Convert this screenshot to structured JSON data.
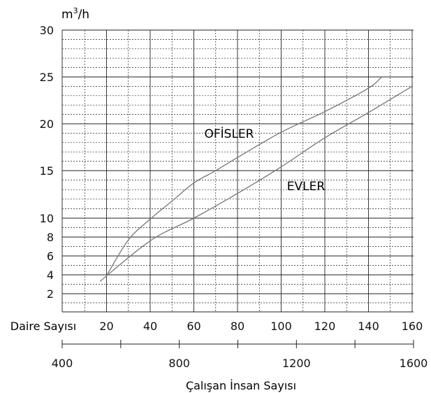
{
  "chart_data": {
    "type": "line",
    "y_unit_base": "m",
    "y_unit_sup": "3",
    "y_unit_tail": "/h",
    "y_ticks": [
      "30",
      "25",
      "20",
      "15",
      "10",
      "8",
      "6",
      "4",
      "2"
    ],
    "y_tick_values": [
      30,
      25,
      20,
      15,
      10,
      8,
      6,
      4,
      2
    ],
    "x_row_label": "Daire Sayısı",
    "x_ticks": [
      "20",
      "40",
      "60",
      "80",
      "100",
      "120",
      "140",
      "160"
    ],
    "x_tick_values": [
      20,
      40,
      60,
      80,
      100,
      120,
      140,
      160
    ],
    "x2_ticks": [
      "400",
      "800",
      "1200",
      "1600"
    ],
    "x2_tick_values": [
      400,
      800,
      1200,
      1600
    ],
    "x2_label": "Çalışan İnsan Sayısı",
    "grid": true,
    "colors": {
      "line": "#777777",
      "grid": "#222222",
      "text": "#111111"
    },
    "series": [
      {
        "name": "OFİSLER",
        "points": [
          [
            20,
            3.9
          ],
          [
            30,
            7.7
          ],
          [
            40,
            9.9
          ],
          [
            50,
            11.8
          ],
          [
            60,
            13.7
          ],
          [
            70,
            15.0
          ],
          [
            80,
            16.4
          ],
          [
            100,
            19.1
          ],
          [
            120,
            21.3
          ],
          [
            140,
            23.8
          ],
          [
            146,
            25
          ]
        ]
      },
      {
        "name": "EVLER",
        "points": [
          [
            17,
            3.3
          ],
          [
            40,
            7.6
          ],
          [
            60,
            10.0
          ],
          [
            80,
            12.6
          ],
          [
            100,
            15.4
          ],
          [
            120,
            18.5
          ],
          [
            140,
            21.2
          ],
          [
            160,
            24.0
          ]
        ]
      }
    ]
  }
}
